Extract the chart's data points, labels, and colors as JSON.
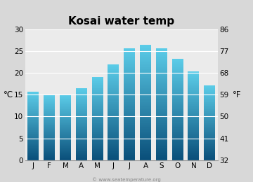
{
  "title": "Kosai water temp",
  "months": [
    "J",
    "F",
    "M",
    "A",
    "M",
    "J",
    "J",
    "A",
    "S",
    "O",
    "N",
    "D"
  ],
  "values": [
    15.6,
    15.0,
    15.0,
    16.4,
    19.0,
    21.8,
    25.5,
    26.4,
    25.5,
    23.2,
    20.3,
    17.0
  ],
  "ylabel_left": "°C",
  "ylabel_right": "°F",
  "ylim": [
    0,
    30
  ],
  "yticks_left": [
    0,
    5,
    10,
    15,
    20,
    25,
    30
  ],
  "yticks_right": [
    32,
    41,
    50,
    59,
    68,
    77,
    86
  ],
  "bar_color_top": "#5bcce8",
  "bar_color_bottom": "#0a4f7a",
  "bg_color": "#d8d8d8",
  "plot_bg": "#ebebeb",
  "title_fontsize": 11,
  "tick_fontsize": 7.5,
  "watermark": "© www.seatemperature.org"
}
